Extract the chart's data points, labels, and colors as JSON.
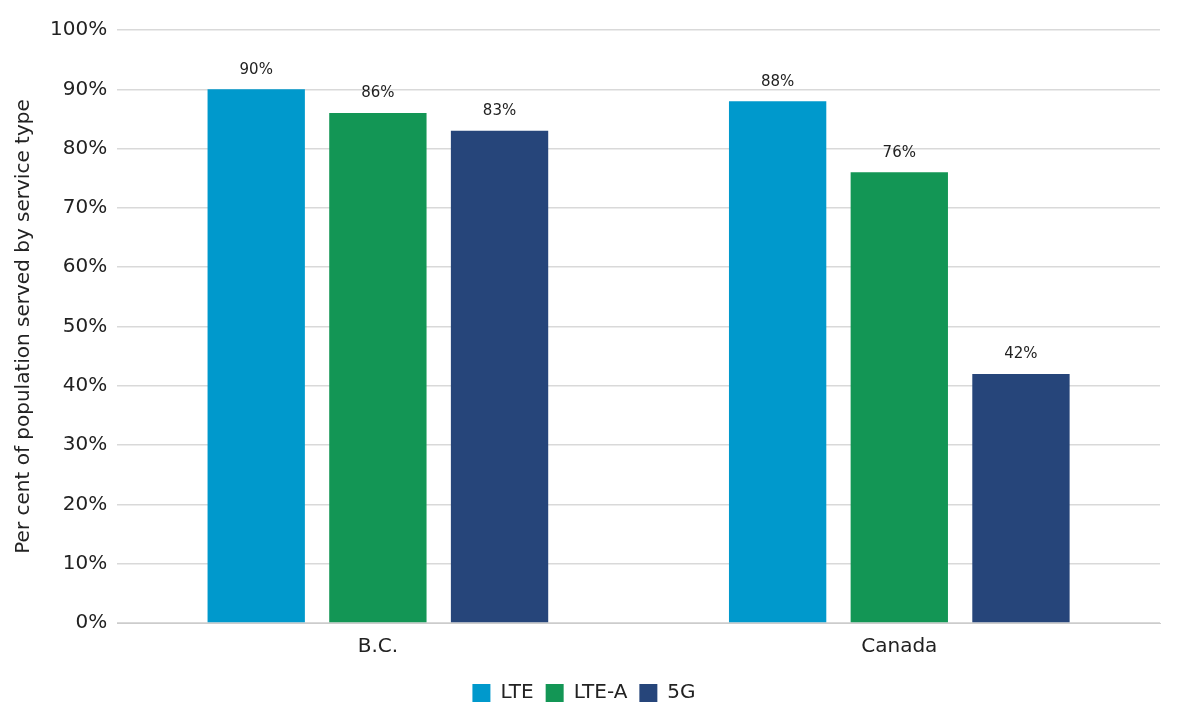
{
  "chart_data": {
    "type": "bar",
    "ylabel": "Per cent of population served by service type",
    "categories": [
      "B.C.",
      "Canada"
    ],
    "series": [
      {
        "name": "LTE",
        "color": "#0099cc",
        "values": [
          90,
          88
        ],
        "value_labels": [
          "90%",
          "88%"
        ]
      },
      {
        "name": "LTE-A",
        "color": "#139655",
        "values": [
          86,
          76
        ],
        "value_labels": [
          "86%",
          "76%"
        ]
      },
      {
        "name": "5G",
        "color": "#26457a",
        "values": [
          83,
          42
        ],
        "value_labels": [
          "83%",
          "42%"
        ]
      }
    ],
    "ylim": [
      0,
      100
    ],
    "yticks": [
      {
        "value": 0,
        "label": "0%"
      },
      {
        "value": 10,
        "label": "10%"
      },
      {
        "value": 20,
        "label": "20%"
      },
      {
        "value": 30,
        "label": "30%"
      },
      {
        "value": 40,
        "label": "40%"
      },
      {
        "value": 50,
        "label": "50%"
      },
      {
        "value": 60,
        "label": "60%"
      },
      {
        "value": 70,
        "label": "70%"
      },
      {
        "value": 80,
        "label": "80%"
      },
      {
        "value": 90,
        "label": "90%"
      },
      {
        "value": 100,
        "label": "100%"
      }
    ],
    "grid": "y",
    "legend": "bottom"
  }
}
